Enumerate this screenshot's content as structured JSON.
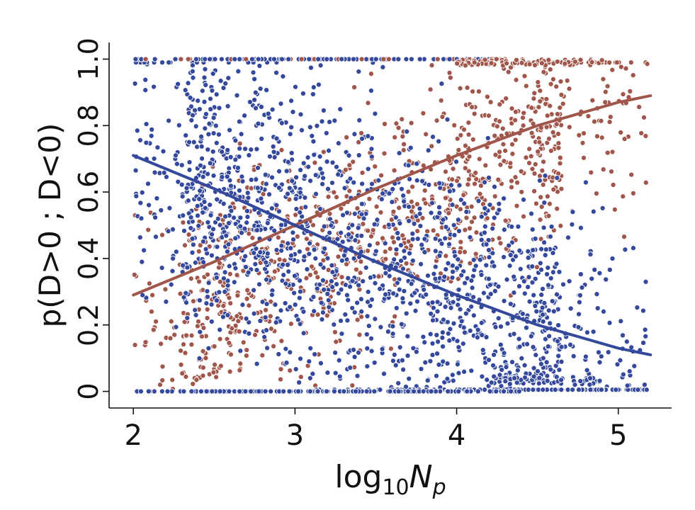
{
  "chart_data": {
    "type": "scatter",
    "title": "",
    "xlabel": {
      "base": "log",
      "sub": "10",
      "var": "N",
      "var_sub": "p"
    },
    "ylabel": "p(D>0 ; D<0)",
    "xlim": [
      1.85,
      5.33
    ],
    "ylim": [
      -0.05,
      1.05
    ],
    "x_ticks": [
      2,
      3,
      4,
      5
    ],
    "x_tick_labels": [
      "2",
      "3",
      "4",
      "5"
    ],
    "y_ticks": [
      0,
      0.2,
      0.4,
      0.6,
      0.8,
      1.0
    ],
    "y_tick_labels": [
      "0",
      "0.2",
      "0.4",
      "0.6",
      "0.8",
      "1.0"
    ],
    "grid": false,
    "legend": "none",
    "series": [
      {
        "name": "p(D>0)",
        "color": "#a0564b",
        "fit_curve": {
          "x": [
            2.0,
            2.5,
            3.0,
            3.5,
            4.0,
            4.5,
            5.0,
            5.2
          ],
          "y": [
            0.29,
            0.39,
            0.5,
            0.61,
            0.71,
            0.8,
            0.87,
            0.89
          ]
        }
      },
      {
        "name": "p(D<0)",
        "color": "#34489c",
        "fit_curve": {
          "x": [
            2.0,
            2.5,
            3.0,
            3.5,
            4.0,
            4.5,
            5.0,
            5.2
          ],
          "y": [
            0.71,
            0.61,
            0.5,
            0.39,
            0.29,
            0.2,
            0.13,
            0.11
          ]
        }
      }
    ]
  }
}
